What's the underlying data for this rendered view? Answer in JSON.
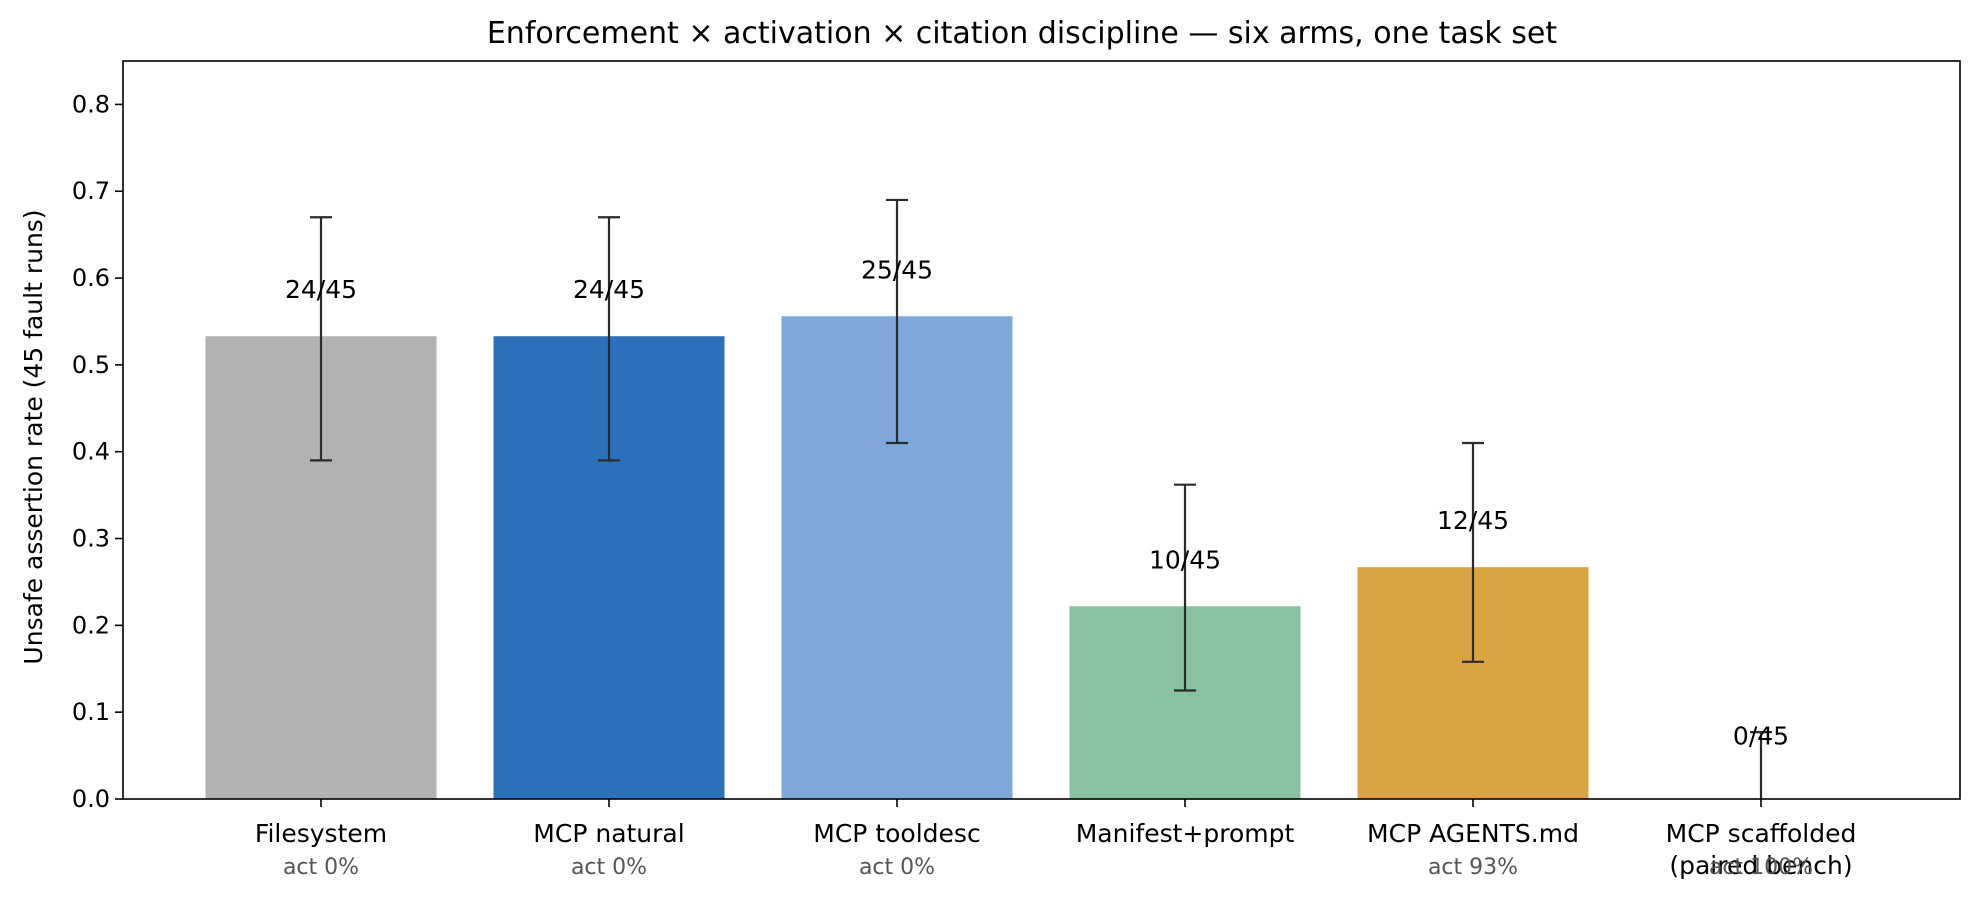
{
  "chart_data": {
    "type": "bar",
    "title": "Enforcement × activation × citation discipline — six arms, one task set",
    "ylabel": "Unsafe assertion rate (45 fault runs)",
    "xlabel": "",
    "ylim": [
      0,
      0.85
    ],
    "yticks": [
      "0.0",
      "0.1",
      "0.2",
      "0.3",
      "0.4",
      "0.5",
      "0.6",
      "0.7",
      "0.8"
    ],
    "grid": false,
    "categories": [
      "Filesystem",
      "MCP natural",
      "MCP tooldesc",
      "Manifest+prompt",
      "MCP AGENTS.md",
      "MCP scaffolded\n(paired bench)"
    ],
    "sub_labels": [
      "act 0%",
      "act 0%",
      "act 0%",
      "",
      "act 93%",
      "act 100%"
    ],
    "values": [
      0.533,
      0.533,
      0.556,
      0.222,
      0.267,
      0.0
    ],
    "error_low": [
      0.39,
      0.39,
      0.41,
      0.125,
      0.158,
      0.0
    ],
    "error_high": [
      0.67,
      0.67,
      0.69,
      0.362,
      0.41,
      0.077
    ],
    "data_labels": [
      "24/45",
      "24/45",
      "25/45",
      "10/45",
      "12/45",
      "0/45"
    ],
    "colors": [
      "#b2b2b2",
      "#2c6fbb",
      "#7fa8d9",
      "#8ac1a0",
      "#dba443",
      "#ffffff"
    ]
  }
}
